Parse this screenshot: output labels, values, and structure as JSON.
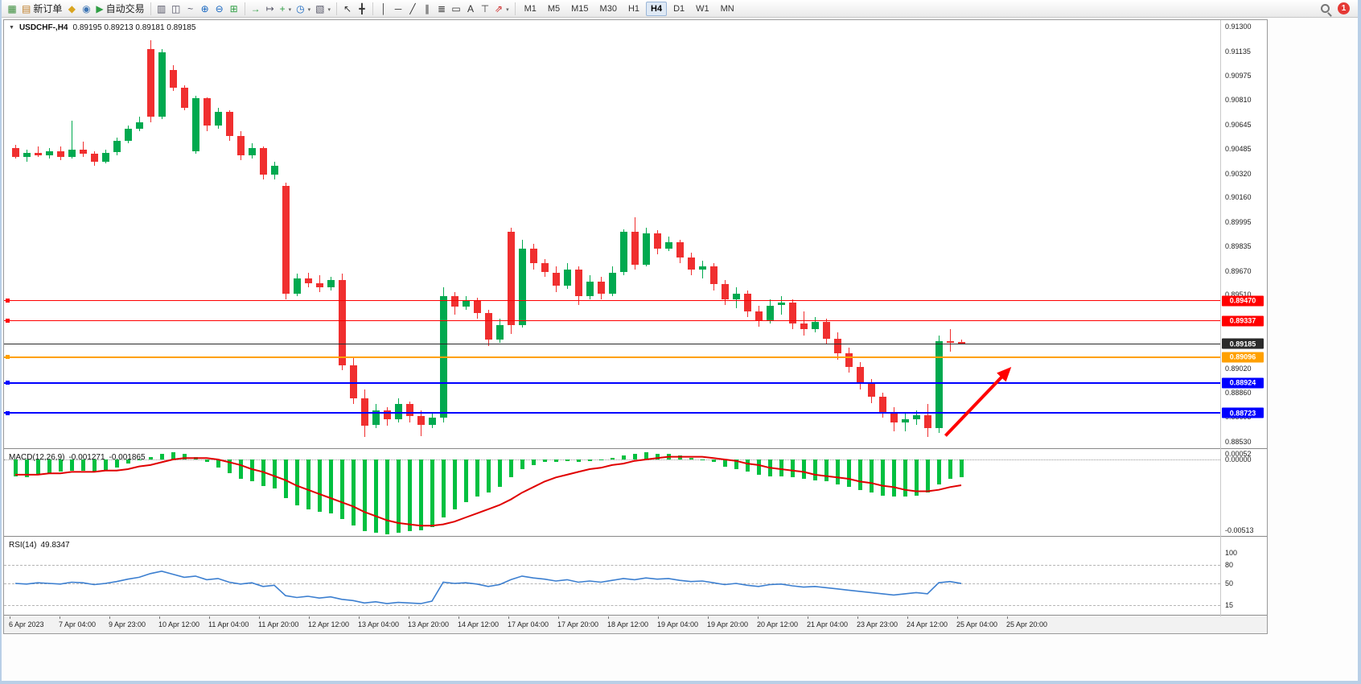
{
  "toolbar": {
    "groups": [
      {
        "items": [
          {
            "type": "icon",
            "name": "chart-file-icon",
            "glyph": "▦",
            "color": "#3a8d3a"
          },
          {
            "type": "button",
            "name": "new-order-button",
            "glyph": "▤",
            "color": "#c07f2a",
            "label": "新订单"
          },
          {
            "type": "icon",
            "name": "market-watch-icon",
            "glyph": "◆",
            "color": "#d9a520"
          },
          {
            "type": "icon",
            "name": "community-icon",
            "glyph": "◉",
            "color": "#3f76b5"
          },
          {
            "type": "button",
            "name": "algo-trading-button",
            "glyph": "▶",
            "color": "#2f9e44",
            "label": "自动交易"
          }
        ]
      },
      {
        "items": [
          {
            "type": "icon",
            "name": "bar-chart-type-icon",
            "glyph": "▥",
            "color": "#556"
          },
          {
            "type": "icon",
            "name": "candlestick-chart-type-icon",
            "glyph": "◫",
            "color": "#556"
          },
          {
            "type": "icon",
            "name": "line-chart-type-icon",
            "glyph": "~",
            "color": "#556"
          },
          {
            "type": "icon",
            "name": "zoom-in-icon",
            "glyph": "⊕",
            "color": "#1565c0"
          },
          {
            "type": "icon",
            "name": "zoom-out-icon",
            "glyph": "⊖",
            "color": "#1565c0"
          },
          {
            "type": "icon",
            "name": "tile-windows-icon",
            "glyph": "⊞",
            "color": "#2f9e44"
          }
        ]
      },
      {
        "items": [
          {
            "type": "icon",
            "name": "auto-scroll-icon",
            "glyph": "→",
            "color": "#2f9e44"
          },
          {
            "type": "icon",
            "name": "chart-shift-icon",
            "glyph": "↦",
            "color": "#556"
          },
          {
            "type": "dropdown",
            "name": "indicators-menu-button",
            "glyph": "+",
            "color": "#2f9e44"
          },
          {
            "type": "dropdown",
            "name": "periods-menu-button",
            "glyph": "◷",
            "color": "#1565c0"
          },
          {
            "type": "dropdown",
            "name": "template-menu-button",
            "glyph": "▧",
            "color": "#556"
          }
        ]
      },
      {
        "items": [
          {
            "type": "icon",
            "name": "cursor-tool-icon",
            "glyph": "↖",
            "color": "#333"
          },
          {
            "type": "icon",
            "name": "crosshair-tool-icon",
            "glyph": "╋",
            "color": "#333"
          }
        ]
      },
      {
        "items": [
          {
            "type": "icon",
            "name": "vertical-line-tool-icon",
            "glyph": "│",
            "color": "#333"
          },
          {
            "type": "icon",
            "name": "horizontal-line-tool-icon",
            "glyph": "─",
            "color": "#333"
          },
          {
            "type": "icon",
            "name": "trendline-tool-icon",
            "glyph": "╱",
            "color": "#333"
          },
          {
            "type": "icon",
            "name": "channel-tool-icon",
            "glyph": "∥",
            "color": "#333"
          },
          {
            "type": "icon",
            "name": "fibonacci-tool-icon",
            "glyph": "≣",
            "color": "#333"
          },
          {
            "type": "icon",
            "name": "shapes-tool-icon",
            "glyph": "▭",
            "color": "#333"
          },
          {
            "type": "icon",
            "name": "text-tool-icon",
            "glyph": "A",
            "color": "#333"
          },
          {
            "type": "icon",
            "name": "label-tool-icon",
            "glyph": "⊤",
            "color": "#333"
          },
          {
            "type": "dropdown",
            "name": "arrows-tool-menu-button",
            "glyph": "⇗",
            "color": "#c22"
          }
        ]
      }
    ],
    "timeframes": [
      "M1",
      "M5",
      "M15",
      "M30",
      "H1",
      "H4",
      "D1",
      "W1",
      "MN"
    ],
    "active_timeframe": "H4",
    "notification_badge": "1"
  },
  "chart": {
    "collapse_glyph": "▼",
    "title": "USDCHF-,H4",
    "ohlc": "0.89195 0.89213 0.89181 0.89185"
  },
  "macd": {
    "label": "MACD(12,26,9)",
    "value_main": "-0.001271",
    "value_signal": "-0.001865"
  },
  "rsi": {
    "label": "RSI(14)",
    "value": "49.8347"
  },
  "colors": {
    "up": "#00a94f",
    "down": "#f02f2f",
    "hist": "#00c040",
    "signal": "#e00000",
    "rsi_line": "#3c7fd0",
    "bid_line": "#2a2a2a",
    "arrow": "#ff0000"
  },
  "chart_data": [
    {
      "type": "candlestick",
      "symbol": "USDCHF-",
      "period": "H4",
      "ohlc_current": {
        "open": 0.89195,
        "high": 0.89213,
        "low": 0.89181,
        "close": 0.89185
      },
      "ylim": [
        0.8853,
        0.913
      ],
      "y_tick_labels": [
        "0.91300",
        "0.91135",
        "0.90975",
        "0.90810",
        "0.90645",
        "0.90485",
        "0.90320",
        "0.90160",
        "0.89995",
        "0.89835",
        "0.89670",
        "0.89510",
        "0.89020",
        "0.88860",
        "0.88695",
        "0.88530"
      ],
      "x_tick_labels": [
        "6 Apr 2023",
        "7 Apr 04:00",
        "9 Apr 23:00",
        "10 Apr 12:00",
        "11 Apr 04:00",
        "11 Apr 20:00",
        "12 Apr 12:00",
        "13 Apr 04:00",
        "13 Apr 20:00",
        "14 Apr 12:00",
        "17 Apr 04:00",
        "17 Apr 20:00",
        "18 Apr 12:00",
        "19 Apr 04:00",
        "19 Apr 20:00",
        "20 Apr 12:00",
        "21 Apr 04:00",
        "23 Apr 23:00",
        "24 Apr 12:00",
        "25 Apr 04:00",
        "25 Apr 20:00"
      ],
      "candles": [
        [
          0.9049,
          0.9051,
          0.9042,
          0.9043
        ],
        [
          0.9043,
          0.9048,
          0.904,
          0.9046
        ],
        [
          0.9046,
          0.905,
          0.9043,
          0.9044
        ],
        [
          0.9044,
          0.9049,
          0.9042,
          0.9047
        ],
        [
          0.9047,
          0.905,
          0.9041,
          0.9043
        ],
        [
          0.9043,
          0.9067,
          0.9042,
          0.9048
        ],
        [
          0.9048,
          0.9053,
          0.9043,
          0.9045
        ],
        [
          0.9045,
          0.9047,
          0.9037,
          0.904
        ],
        [
          0.904,
          0.9048,
          0.9039,
          0.9046
        ],
        [
          0.9046,
          0.9056,
          0.9044,
          0.9054
        ],
        [
          0.9054,
          0.9064,
          0.9052,
          0.9062
        ],
        [
          0.9062,
          0.907,
          0.906,
          0.9066
        ],
        [
          0.9115,
          0.9121,
          0.9066,
          0.907
        ],
        [
          0.907,
          0.9115,
          0.9068,
          0.9113
        ],
        [
          0.9101,
          0.9104,
          0.9087,
          0.9089
        ],
        [
          0.9089,
          0.9091,
          0.9074,
          0.9076
        ],
        [
          0.9047,
          0.9084,
          0.9045,
          0.9082
        ],
        [
          0.9082,
          0.9083,
          0.906,
          0.9064
        ],
        [
          0.9064,
          0.9076,
          0.9062,
          0.9073
        ],
        [
          0.9073,
          0.9074,
          0.9054,
          0.9057
        ],
        [
          0.9057,
          0.906,
          0.9041,
          0.9044
        ],
        [
          0.9044,
          0.9052,
          0.9042,
          0.9049
        ],
        [
          0.9049,
          0.905,
          0.9028,
          0.9031
        ],
        [
          0.9031,
          0.904,
          0.9028,
          0.9037
        ],
        [
          0.9024,
          0.9026,
          0.8948,
          0.8952
        ],
        [
          0.8952,
          0.8965,
          0.895,
          0.8962
        ],
        [
          0.8962,
          0.8966,
          0.8956,
          0.8959
        ],
        [
          0.8959,
          0.8964,
          0.8953,
          0.8956
        ],
        [
          0.8956,
          0.8963,
          0.8954,
          0.8961
        ],
        [
          0.8961,
          0.8965,
          0.8901,
          0.8904
        ],
        [
          0.8904,
          0.891,
          0.8878,
          0.8882
        ],
        [
          0.8882,
          0.8888,
          0.8856,
          0.8864
        ],
        [
          0.8864,
          0.8878,
          0.8862,
          0.8874
        ],
        [
          0.8874,
          0.8876,
          0.8864,
          0.8868
        ],
        [
          0.8868,
          0.8882,
          0.8866,
          0.8878
        ],
        [
          0.8878,
          0.888,
          0.8866,
          0.887
        ],
        [
          0.887,
          0.8874,
          0.8857,
          0.8864
        ],
        [
          0.8864,
          0.8872,
          0.8862,
          0.8869
        ],
        [
          0.8869,
          0.8956,
          0.8866,
          0.895
        ],
        [
          0.895,
          0.8953,
          0.8938,
          0.8943
        ],
        [
          0.8943,
          0.895,
          0.8941,
          0.8947
        ],
        [
          0.8947,
          0.8949,
          0.8935,
          0.8939
        ],
        [
          0.8939,
          0.8941,
          0.8917,
          0.8921
        ],
        [
          0.8921,
          0.8935,
          0.8919,
          0.8931
        ],
        [
          0.8993,
          0.8996,
          0.8925,
          0.8931
        ],
        [
          0.8931,
          0.8988,
          0.8929,
          0.8982
        ],
        [
          0.8982,
          0.8985,
          0.8968,
          0.8972
        ],
        [
          0.8972,
          0.8975,
          0.8963,
          0.8966
        ],
        [
          0.8966,
          0.897,
          0.8953,
          0.8957
        ],
        [
          0.8957,
          0.8972,
          0.8955,
          0.8968
        ],
        [
          0.8968,
          0.897,
          0.8944,
          0.895
        ],
        [
          0.895,
          0.8964,
          0.8948,
          0.896
        ],
        [
          0.896,
          0.8963,
          0.8948,
          0.8952
        ],
        [
          0.8952,
          0.897,
          0.895,
          0.8966
        ],
        [
          0.8966,
          0.8995,
          0.8964,
          0.8993
        ],
        [
          0.8993,
          0.9003,
          0.8968,
          0.8971
        ],
        [
          0.8971,
          0.8996,
          0.897,
          0.8992
        ],
        [
          0.8992,
          0.8994,
          0.8978,
          0.8982
        ],
        [
          0.8982,
          0.899,
          0.898,
          0.8986
        ],
        [
          0.8986,
          0.8988,
          0.8972,
          0.8976
        ],
        [
          0.8976,
          0.8979,
          0.8964,
          0.8968
        ],
        [
          0.8968,
          0.8974,
          0.8962,
          0.897
        ],
        [
          0.897,
          0.8972,
          0.8954,
          0.8958
        ],
        [
          0.8958,
          0.8961,
          0.8944,
          0.8948
        ],
        [
          0.8948,
          0.8956,
          0.8942,
          0.8952
        ],
        [
          0.8952,
          0.8954,
          0.8936,
          0.894
        ],
        [
          0.894,
          0.8944,
          0.893,
          0.8934
        ],
        [
          0.8934,
          0.8948,
          0.8932,
          0.8944
        ],
        [
          0.8944,
          0.895,
          0.8938,
          0.8946
        ],
        [
          0.8946,
          0.8948,
          0.8928,
          0.8932
        ],
        [
          0.8932,
          0.894,
          0.8924,
          0.8928
        ],
        [
          0.8928,
          0.8936,
          0.8926,
          0.8933
        ],
        [
          0.8933,
          0.8935,
          0.8918,
          0.8922
        ],
        [
          0.8922,
          0.8926,
          0.8908,
          0.8912
        ],
        [
          0.8912,
          0.8916,
          0.8899,
          0.8903
        ],
        [
          0.8903,
          0.8906,
          0.8888,
          0.8892
        ],
        [
          0.8892,
          0.8895,
          0.8879,
          0.8883
        ],
        [
          0.8883,
          0.8886,
          0.8869,
          0.8873
        ],
        [
          0.8873,
          0.8876,
          0.886,
          0.8866
        ],
        [
          0.8866,
          0.8872,
          0.886,
          0.8868
        ],
        [
          0.8868,
          0.8874,
          0.8864,
          0.8871
        ],
        [
          0.8871,
          0.8878,
          0.8856,
          0.8862
        ],
        [
          0.8862,
          0.8924,
          0.8859,
          0.892
        ],
        [
          0.892,
          0.8928,
          0.8913,
          0.89195
        ],
        [
          0.89195,
          0.89213,
          0.89181,
          0.89185
        ]
      ],
      "hlines": [
        {
          "label": "0.89470",
          "price": 0.8947,
          "color": "#ff0000",
          "thickness": 1,
          "role": "resistance"
        },
        {
          "label": "0.89337",
          "price": 0.89337,
          "color": "#ff0000",
          "thickness": 1,
          "role": "resistance"
        },
        {
          "label": "0.89185",
          "price": 0.89185,
          "color": "#2a2a2a",
          "thickness": 1,
          "role": "bid"
        },
        {
          "label": "0.89096",
          "price": 0.89096,
          "color": "#ffa000",
          "thickness": 2,
          "role": "pivot"
        },
        {
          "label": "0.88924",
          "price": 0.88924,
          "color": "#0000ff",
          "thickness": 2,
          "role": "support"
        },
        {
          "label": "0.88723",
          "price": 0.88723,
          "color": "#0000ff",
          "thickness": 2,
          "role": "support"
        }
      ],
      "arrow_annotation": {
        "x_from_bar": 82.6,
        "price_from": 0.8857,
        "x_to_bar": 88.2,
        "price_to": 0.8901,
        "color": "#ff0000"
      }
    },
    {
      "type": "bar",
      "name": "MACD",
      "params": "12,26,9",
      "current_main": -0.001271,
      "current_signal": -0.001865,
      "y_tick_labels": [
        "0.00052",
        "0.00000",
        "-0.00513"
      ],
      "ylim": [
        -0.00545,
        0.00075
      ],
      "histogram": [
        -0.0012,
        -0.0013,
        -0.0011,
        -0.001,
        -0.0009,
        -0.0008,
        -0.0008,
        -0.0009,
        -0.0008,
        -0.0006,
        -0.0003,
        0.0,
        0.0002,
        0.0004,
        0.0005,
        0.0004,
        0.0002,
        -0.0002,
        -0.0006,
        -0.001,
        -0.0014,
        -0.0016,
        -0.0019,
        -0.0021,
        -0.0028,
        -0.0033,
        -0.0036,
        -0.0038,
        -0.0039,
        -0.0043,
        -0.0048,
        -0.0052,
        -0.0053,
        -0.0054,
        -0.0053,
        -0.0052,
        -0.0051,
        -0.0049,
        -0.0042,
        -0.0036,
        -0.0031,
        -0.0027,
        -0.0024,
        -0.002,
        -0.0013,
        -0.0007,
        -0.0004,
        -0.0002,
        -0.0002,
        -0.0001,
        -0.0002,
        -0.0001,
        0.0,
        0.0001,
        0.0003,
        0.0004,
        0.0005,
        0.0004,
        0.0004,
        0.0003,
        0.0001,
        0.0,
        -0.0002,
        -0.0005,
        -0.0007,
        -0.0009,
        -0.0011,
        -0.0012,
        -0.0012,
        -0.0013,
        -0.0014,
        -0.0015,
        -0.0016,
        -0.0018,
        -0.002,
        -0.0022,
        -0.0024,
        -0.0026,
        -0.0027,
        -0.0027,
        -0.0026,
        -0.0024,
        -0.0018,
        -0.0014,
        -0.001271
      ],
      "signal": [
        -0.0011,
        -0.0011,
        -0.0011,
        -0.001,
        -0.001,
        -0.0009,
        -0.0009,
        -0.0009,
        -0.0008,
        -0.0008,
        -0.0007,
        -0.0005,
        -0.0004,
        -0.0002,
        0.0,
        0.0001,
        0.0001,
        0.0001,
        0.0,
        -0.0002,
        -0.0004,
        -0.0007,
        -0.0009,
        -0.0012,
        -0.0015,
        -0.0019,
        -0.0022,
        -0.0025,
        -0.0028,
        -0.0031,
        -0.0034,
        -0.0038,
        -0.0041,
        -0.0044,
        -0.0046,
        -0.0047,
        -0.0048,
        -0.0048,
        -0.0047,
        -0.0045,
        -0.0042,
        -0.0039,
        -0.0036,
        -0.0033,
        -0.0029,
        -0.0024,
        -0.002,
        -0.0016,
        -0.0013,
        -0.0011,
        -0.0009,
        -0.0007,
        -0.0006,
        -0.0004,
        -0.0003,
        -0.0001,
        0.0,
        0.0001,
        0.0002,
        0.0002,
        0.0002,
        0.0002,
        0.0001,
        0.0,
        -0.0001,
        -0.0003,
        -0.0004,
        -0.0006,
        -0.0007,
        -0.0008,
        -0.0009,
        -0.0011,
        -0.0012,
        -0.0013,
        -0.0014,
        -0.0016,
        -0.0017,
        -0.0019,
        -0.002,
        -0.0022,
        -0.0023,
        -0.0023,
        -0.0022,
        -0.002,
        -0.001865
      ]
    },
    {
      "type": "line",
      "name": "RSI",
      "params": "14",
      "current": 49.8347,
      "y_tick_labels": [
        "100",
        "80",
        "50",
        "15"
      ],
      "levels": [
        80,
        50,
        15
      ],
      "ylim": [
        0,
        100
      ],
      "values": [
        50,
        49,
        51,
        50,
        49,
        52,
        51,
        48,
        50,
        53,
        57,
        60,
        66,
        70,
        65,
        60,
        62,
        56,
        58,
        52,
        49,
        51,
        45,
        47,
        30,
        27,
        29,
        26,
        28,
        24,
        22,
        18,
        20,
        17,
        19,
        18,
        17,
        21,
        52,
        50,
        51,
        49,
        45,
        48,
        56,
        62,
        59,
        57,
        54,
        56,
        52,
        54,
        52,
        55,
        58,
        56,
        59,
        57,
        58,
        55,
        53,
        54,
        51,
        48,
        50,
        47,
        45,
        48,
        49,
        46,
        44,
        45,
        43,
        41,
        39,
        37,
        35,
        33,
        31,
        33,
        35,
        33,
        51,
        53,
        49.8347
      ]
    }
  ]
}
